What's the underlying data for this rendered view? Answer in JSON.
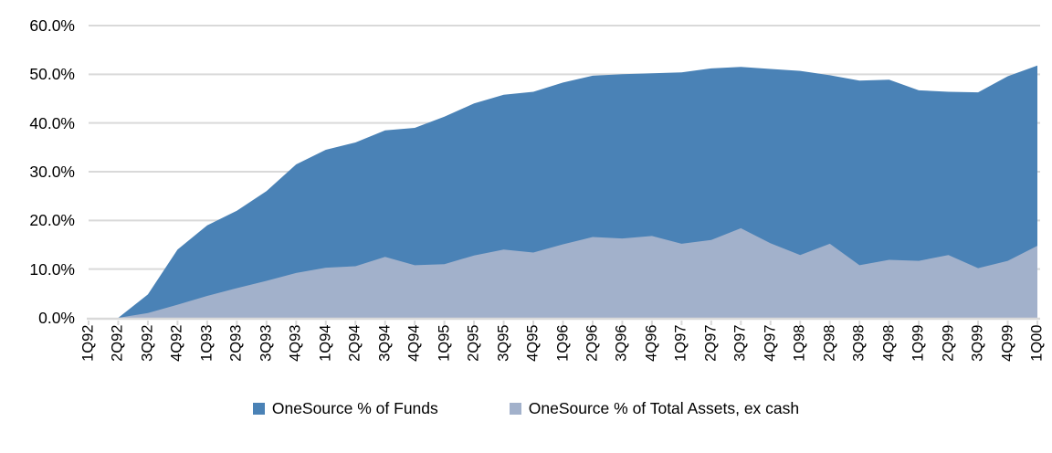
{
  "chart_data": {
    "type": "area",
    "overlap_mode": "overlaid",
    "categories": [
      "1Q92",
      "2Q92",
      "3Q92",
      "4Q92",
      "1Q93",
      "2Q93",
      "3Q93",
      "4Q93",
      "1Q94",
      "2Q94",
      "3Q94",
      "4Q94",
      "1Q95",
      "2Q95",
      "3Q95",
      "4Q95",
      "1Q96",
      "2Q96",
      "3Q96",
      "4Q96",
      "1Q97",
      "2Q97",
      "3Q97",
      "4Q97",
      "1Q98",
      "2Q98",
      "3Q98",
      "4Q98",
      "1Q99",
      "2Q99",
      "3Q99",
      "4Q99",
      "1Q00"
    ],
    "series": [
      {
        "name": "OneSource % of Funds",
        "color": "#4A82B6",
        "values": [
          0,
          0,
          4.8,
          14.0,
          19.0,
          22.0,
          26.0,
          31.5,
          34.5,
          36.0,
          38.5,
          39.0,
          41.3,
          44.0,
          45.8,
          46.4,
          48.3,
          49.7,
          50.0,
          50.2,
          50.4,
          51.2,
          51.5,
          51.1,
          50.7,
          49.8,
          48.7,
          48.9,
          46.7,
          46.4,
          46.3,
          49.6,
          51.8
        ]
      },
      {
        "name": "OneSource % of Total Assets, ex cash",
        "color": "#A2B1CB",
        "values": [
          0,
          0,
          1.0,
          2.7,
          4.5,
          6.1,
          7.6,
          9.2,
          10.3,
          10.6,
          12.5,
          10.8,
          11.0,
          12.8,
          14.0,
          13.4,
          15.1,
          16.6,
          16.3,
          16.8,
          15.2,
          16.0,
          18.4,
          15.3,
          12.9,
          15.2,
          10.8,
          11.9,
          11.7,
          12.9,
          10.2,
          11.7,
          14.8
        ]
      }
    ],
    "title": "",
    "xlabel": "",
    "ylabel": "",
    "ylim": [
      0,
      60
    ],
    "y_ticks": [
      {
        "label": "60.0%",
        "value": 60
      },
      {
        "label": "50.0%",
        "value": 50
      },
      {
        "label": "40.0%",
        "value": 40
      },
      {
        "label": "30.0%",
        "value": 30
      },
      {
        "label": "20.0%",
        "value": 20
      },
      {
        "label": "10.0%",
        "value": 10
      },
      {
        "label": "0.0%",
        "value": 0
      }
    ],
    "grid": true,
    "legend_position": "bottom",
    "gridline_color": "#D9D9D9",
    "axis_color": "#D9D9D9",
    "text_color": "#000000"
  }
}
